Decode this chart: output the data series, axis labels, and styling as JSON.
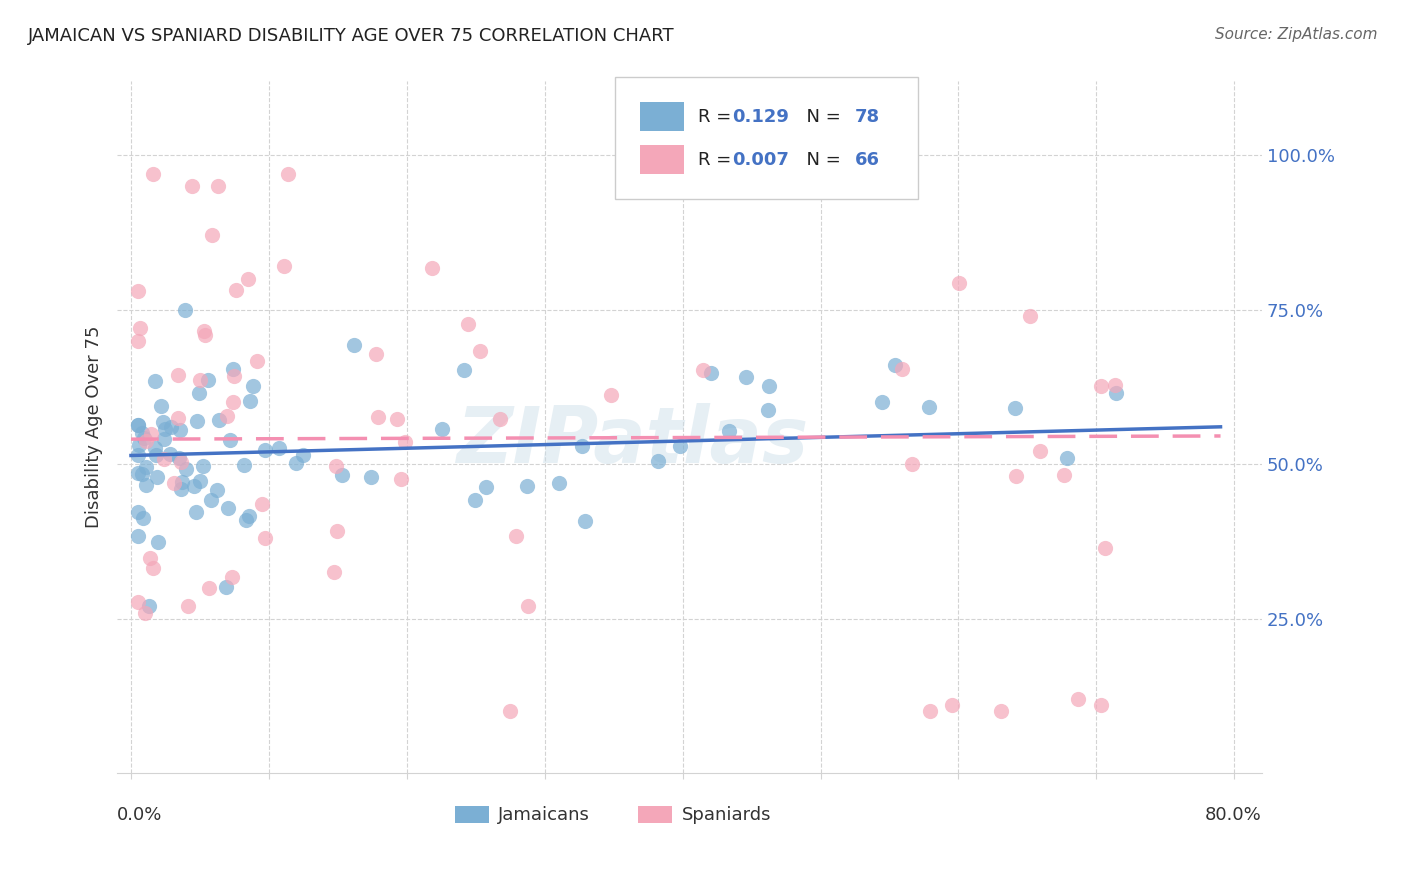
{
  "title": "JAMAICAN VS SPANIARD DISABILITY AGE OVER 75 CORRELATION CHART",
  "source": "Source: ZipAtlas.com",
  "ylabel": "Disability Age Over 75",
  "ytick_labels": [
    "25.0%",
    "50.0%",
    "75.0%",
    "100.0%"
  ],
  "ytick_values": [
    0.25,
    0.5,
    0.75,
    1.0
  ],
  "r_jamaican": 0.129,
  "n_jamaican": 78,
  "r_spaniard": 0.007,
  "n_spaniard": 66,
  "jamaican_color": "#7bafd4",
  "spaniard_color": "#f4a7b9",
  "jamaican_line_color": "#4472c4",
  "spaniard_line_color": "#f48fb1",
  "watermark": "ZIPatlas",
  "xmin": 0.0,
  "xmax": 0.8,
  "ymin": 0.0,
  "ymax": 1.1
}
